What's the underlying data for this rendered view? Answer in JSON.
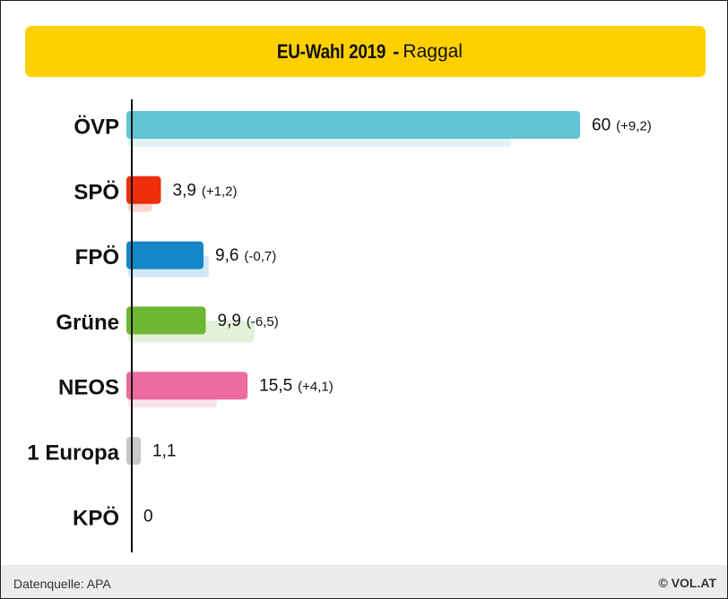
{
  "title": {
    "main": "EU-Wahl 2019",
    "separator": "-",
    "location": "Raggal"
  },
  "footer": {
    "source": "Datenquelle: APA",
    "brand": "© VOL.AT"
  },
  "chart_data": {
    "type": "bar",
    "orientation": "horizontal",
    "categories": [
      "ÖVP",
      "SPÖ",
      "FPÖ",
      "Grüne",
      "NEOS",
      "1 Europa",
      "KPÖ"
    ],
    "series": [
      {
        "values": [
          60,
          3.9,
          9.6,
          9.9,
          15.5,
          1.1,
          0
        ],
        "value_labels": [
          "60",
          "3,9",
          "9,6",
          "9,9",
          "15,5",
          "1,1",
          "0"
        ],
        "change_labels": [
          "(+9,2)",
          "(+1,2)",
          "(-0,7)",
          "(-6,5)",
          "(+4,1)",
          "",
          ""
        ]
      },
      {
        "values": [
          50.8,
          2.7,
          10.3,
          16.4,
          11.4,
          null,
          null
        ]
      }
    ],
    "colors": [
      "#62c4d2",
      "#ee2d0b",
      "#1586c8",
      "#6db732",
      "#ec6ba0",
      "#c8c8c8",
      "#c8c8c8"
    ],
    "previous_colors": [
      "#e0f3f6",
      "#fcd7cf",
      "#d0e6f4",
      "#e2f1d7",
      "#fbe1ec",
      "#eeeeee",
      "#eeeeee"
    ],
    "xlim": [
      0,
      60
    ],
    "grid": false,
    "legend": "none"
  }
}
